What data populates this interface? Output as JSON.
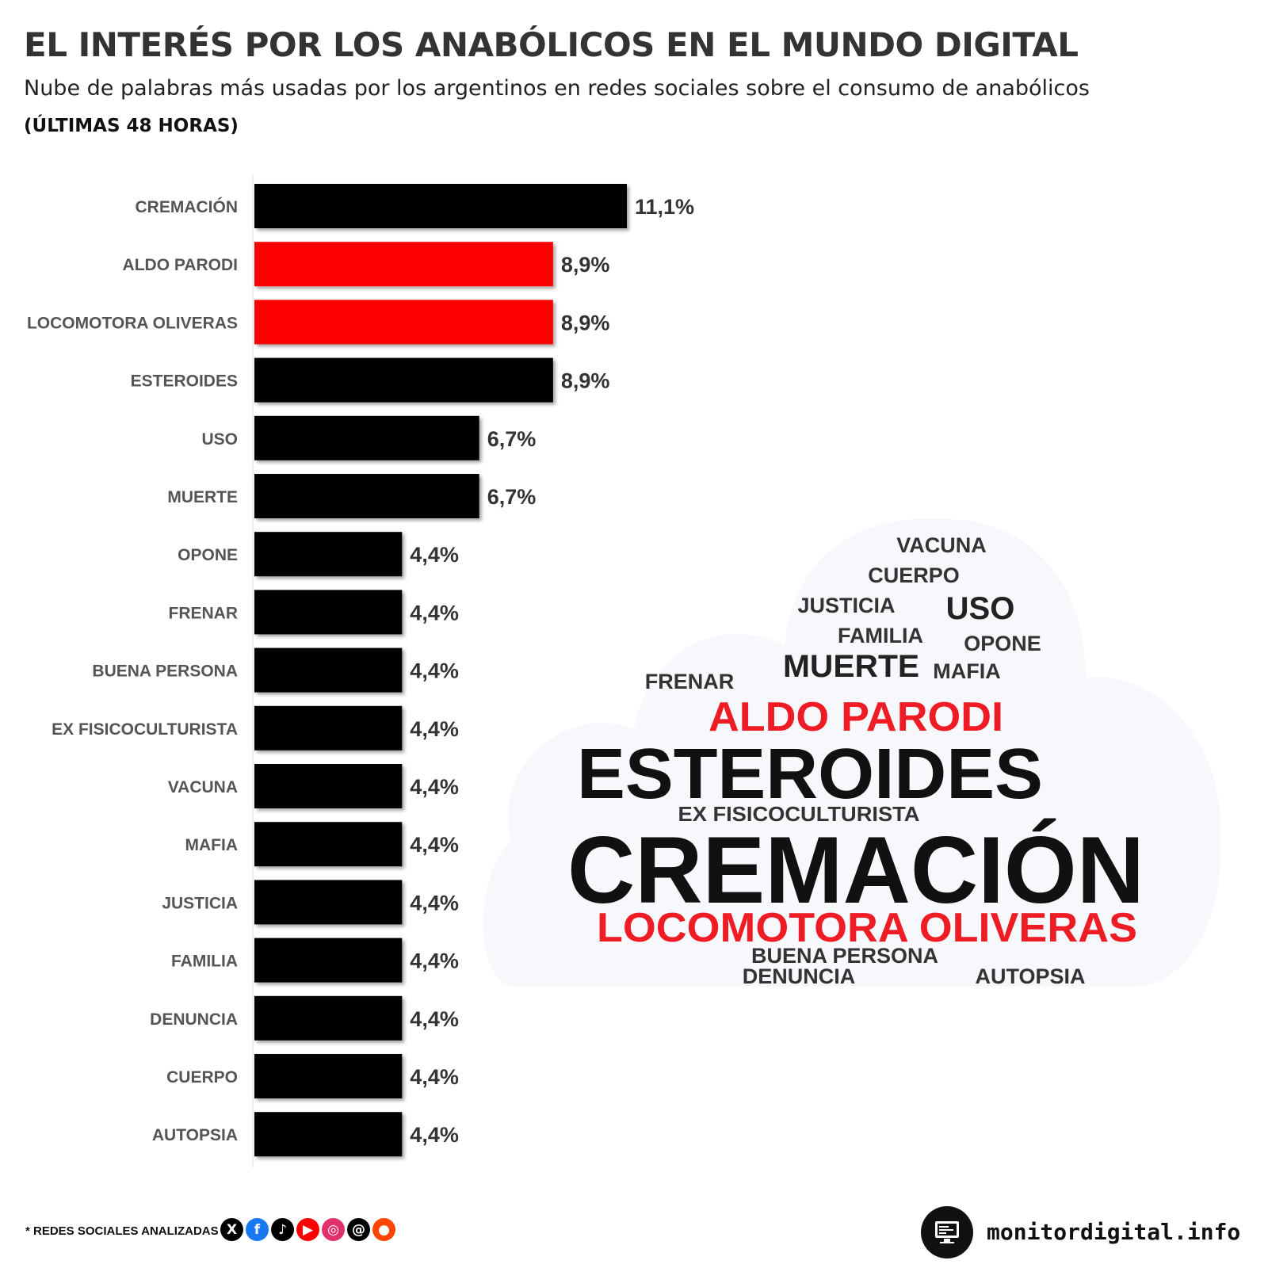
{
  "header": {
    "title": "EL INTERÉS POR LOS ANABÓLICOS EN EL MUNDO DIGITAL",
    "subtitle": "Nube de palabras más usadas por los argentinos en redes sociales sobre el consumo de anabólicos",
    "period": "(ÚLTIMAS 48 HORAS)"
  },
  "colors": {
    "bar_default": "#000000",
    "bar_highlight": "#ff0000",
    "label": "#555555",
    "value": "#333333"
  },
  "chart_data": {
    "type": "bar",
    "orientation": "horizontal",
    "categories": [
      "CREMACIÓN",
      "ALDO PARODI",
      "LOCOMOTORA OLIVERAS",
      "ESTEROIDES",
      "USO",
      "MUERTE",
      "OPONE",
      "FRENAR",
      "BUENA PERSONA",
      "EX FISICOCULTURISTA",
      "VACUNA",
      "MAFIA",
      "JUSTICIA",
      "FAMILIA",
      "DENUNCIA",
      "CUERPO",
      "AUTOPSIA"
    ],
    "values": [
      11.1,
      8.9,
      8.9,
      8.9,
      6.7,
      6.7,
      4.4,
      4.4,
      4.4,
      4.4,
      4.4,
      4.4,
      4.4,
      4.4,
      4.4,
      4.4,
      4.4
    ],
    "value_labels": [
      "11,1%",
      "8,9%",
      "8,9%",
      "8,9%",
      "6,7%",
      "6,7%",
      "4,4%",
      "4,4%",
      "4,4%",
      "4,4%",
      "4,4%",
      "4,4%",
      "4,4%",
      "4,4%",
      "4,4%",
      "4,4%",
      "4,4%"
    ],
    "highlighted": [
      "ALDO PARODI",
      "LOCOMOTORA OLIVERAS"
    ],
    "xlim": [
      0,
      11.1
    ],
    "title": "",
    "xlabel": "",
    "ylabel": ""
  },
  "word_cloud": {
    "words": [
      {
        "text": "VACUNA",
        "weight": 4.4,
        "color": "#333333"
      },
      {
        "text": "CUERPO",
        "weight": 4.4,
        "color": "#333333"
      },
      {
        "text": "JUSTICIA",
        "weight": 4.4,
        "color": "#333333"
      },
      {
        "text": "USO",
        "weight": 6.7,
        "color": "#222222"
      },
      {
        "text": "FAMILIA",
        "weight": 4.4,
        "color": "#333333"
      },
      {
        "text": "OPONE",
        "weight": 4.4,
        "color": "#333333"
      },
      {
        "text": "MUERTE",
        "weight": 6.7,
        "color": "#222222"
      },
      {
        "text": "MAFIA",
        "weight": 4.4,
        "color": "#333333"
      },
      {
        "text": "FRENAR",
        "weight": 4.4,
        "color": "#333333"
      },
      {
        "text": "ALDO PARODI",
        "weight": 8.9,
        "color": "#ee1c25"
      },
      {
        "text": "ESTEROIDES",
        "weight": 8.9,
        "color": "#111111"
      },
      {
        "text": "EX FISICOCULTURISTA",
        "weight": 4.4,
        "color": "#333333"
      },
      {
        "text": "CREMACIÓN",
        "weight": 11.1,
        "color": "#111111"
      },
      {
        "text": "LOCOMOTORA OLIVERAS",
        "weight": 8.9,
        "color": "#ee1c25"
      },
      {
        "text": "BUENA PERSONA",
        "weight": 4.4,
        "color": "#333333"
      },
      {
        "text": "DENUNCIA",
        "weight": 4.4,
        "color": "#333333"
      },
      {
        "text": "AUTOPSIA",
        "weight": 4.4,
        "color": "#333333"
      }
    ]
  },
  "footer": {
    "note": "* REDES SOCIALES ANALIZADAS",
    "social_icons": [
      {
        "name": "x-icon",
        "glyph": "X",
        "color": "#000000"
      },
      {
        "name": "facebook-icon",
        "glyph": "f",
        "color": "#1877f2"
      },
      {
        "name": "tiktok-icon",
        "glyph": "♪",
        "color": "#000000"
      },
      {
        "name": "youtube-icon",
        "glyph": "▶",
        "color": "#ff0000"
      },
      {
        "name": "instagram-icon",
        "glyph": "◎",
        "color": "#e1306c"
      },
      {
        "name": "threads-icon",
        "glyph": "@",
        "color": "#000000"
      },
      {
        "name": "reddit-icon",
        "glyph": "●",
        "color": "#ff4500"
      }
    ],
    "brand": "monitordigital.info"
  }
}
